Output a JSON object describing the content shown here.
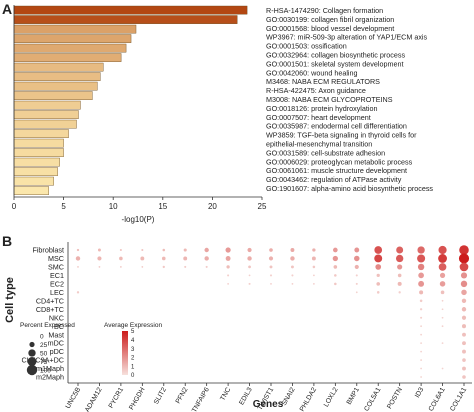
{
  "panel_a": {
    "label": "A",
    "chart_data": {
      "type": "bar",
      "orientation": "horizontal",
      "xlabel": "-log10(P)",
      "xlim": [
        0,
        25
      ],
      "xticks": [
        "0",
        "5",
        "10",
        "15",
        "20",
        "25"
      ],
      "categories": [
        "R-HSA-1474290: Collagen formation",
        "GO:0030199: collagen fibril organization",
        "GO:0001568: blood vessel development",
        "WP3967: miR-509-3p alteration of YAP1/ECM axis",
        "GO:0001503: ossification",
        "GO:0032964: collagen biosynthetic process",
        "GO:0001501: skeletal system development",
        "GO:0042060: wound healing",
        "M3468: NABA ECM REGULATORS",
        "R-HSA-422475: Axon guidance",
        "M3008: NABA ECM GLYCOPROTEINS",
        "GO:0018126: protein hydroxylation",
        "GO:0007507: heart development",
        "GO:0035987: endodermal cell differentiation",
        "WP3859: TGF-beta signaling in thyroid cells for epithelial-mesenchymal transition",
        "GO:0031589: cell-substrate adhesion",
        "GO:0006029: proteoglycan metabolic process",
        "GO:0061061: muscle structure development",
        "GO:0043462: regulation of ATPase activity",
        "GO:1901607: alpha-amino acid biosynthetic process"
      ],
      "label_lines": [
        [
          "R-HSA-1474290: Collagen formation"
        ],
        [
          "GO:0030199: collagen fibril organization"
        ],
        [
          "GO:0001568: blood vessel development"
        ],
        [
          "WP3967: miR-509-3p alteration of YAP1/ECM axis"
        ],
        [
          "GO:0001503: ossification"
        ],
        [
          "GO:0032964: collagen biosynthetic process"
        ],
        [
          "GO:0001501: skeletal system development"
        ],
        [
          "GO:0042060: wound healing"
        ],
        [
          "M3468: NABA ECM REGULATORS"
        ],
        [
          "R-HSA-422475: Axon guidance"
        ],
        [
          "M3008: NABA ECM GLYCOPROTEINS"
        ],
        [
          "GO:0018126: protein hydroxylation"
        ],
        [
          "GO:0007507: heart development"
        ],
        [
          "GO:0035987: endodermal cell differentiation"
        ],
        [
          "WP3859: TGF-beta signaling in thyroid cells for",
          "epithelial-mesenchymal transition"
        ],
        [
          "GO:0031589: cell-substrate adhesion"
        ],
        [
          "GO:0006029: proteoglycan metabolic process"
        ],
        [
          "GO:0061061: muscle structure development"
        ],
        [
          "GO:0043462: regulation of ATPase activity"
        ],
        [
          "GO:1901607: alpha-amino acid biosynthetic process"
        ]
      ],
      "values": [
        23.5,
        22.5,
        12.3,
        11.8,
        11.3,
        10.8,
        9.0,
        8.7,
        8.4,
        7.9,
        6.7,
        6.5,
        6.3,
        5.5,
        5.0,
        5.0,
        4.6,
        4.4,
        4.0,
        3.5
      ],
      "color_high": "#b34712",
      "color_low": "#fbe7ac"
    }
  },
  "panel_b": {
    "label": "B",
    "chart_data": {
      "type": "dotplot",
      "xlabel": "Genes",
      "ylabel": "Cell type",
      "genes": [
        "UNC5B",
        "ADAM12",
        "PYCR1",
        "PHGDH",
        "SLIT2",
        "PFN2",
        "TNFAIP6",
        "TNC",
        "EDIL3",
        "TWIST1",
        "SNAI2",
        "PHLDA2",
        "LOXL2",
        "BMP1",
        "COL5A1",
        "POSTN",
        "ID3",
        "COL6A1",
        "COL1A1"
      ],
      "cell_types": [
        "Fibroblast",
        "MSC",
        "SMC",
        "EC1",
        "EC2",
        "LEC",
        "CD4+TC",
        "CD8+TC",
        "NKC",
        "BC",
        "Mast",
        "mDC",
        "pDC",
        "CLEC9A+DC",
        "m1Maph",
        "m2Maph"
      ],
      "size_legend": {
        "title": "Percent Expressed",
        "levels": [
          0,
          25,
          50,
          75,
          100
        ],
        "labels": [
          "0",
          "25",
          "50",
          "75",
          "100"
        ]
      },
      "color_legend": {
        "title": "Average Expression",
        "ticks": [
          "5",
          "4",
          "3",
          "2",
          "1",
          "0"
        ],
        "min": 0,
        "max": 5,
        "color_low": "#f6e0dc",
        "color_high": "#cc1b1b"
      },
      "pct_expressed": [
        [
          5,
          8,
          4,
          4,
          6,
          9,
          18,
          25,
          16,
          12,
          14,
          10,
          20,
          22,
          55,
          45,
          50,
          62,
          85
        ],
        [
          18,
          16,
          12,
          14,
          12,
          14,
          18,
          22,
          18,
          16,
          18,
          14,
          26,
          28,
          58,
          50,
          60,
          72,
          95
        ],
        [
          3,
          3,
          3,
          3,
          5,
          4,
          4,
          10,
          7,
          8,
          8,
          6,
          12,
          16,
          30,
          25,
          38,
          55,
          70
        ],
        [
          0,
          0,
          0,
          0,
          0,
          0,
          0,
          4,
          3,
          4,
          4,
          3,
          6,
          4,
          10,
          12,
          30,
          25,
          35
        ],
        [
          0,
          0,
          0,
          0,
          0,
          0,
          0,
          3,
          4,
          3,
          3,
          3,
          6,
          4,
          12,
          15,
          32,
          28,
          38
        ],
        [
          5,
          0,
          0,
          0,
          0,
          0,
          0,
          0,
          0,
          0,
          0,
          0,
          0,
          3,
          6,
          5,
          15,
          12,
          28
        ],
        [
          0,
          0,
          0,
          0,
          0,
          0,
          0,
          0,
          0,
          0,
          0,
          0,
          0,
          0,
          0,
          0,
          6,
          3,
          18
        ],
        [
          0,
          0,
          0,
          0,
          0,
          0,
          0,
          0,
          0,
          0,
          0,
          0,
          0,
          0,
          0,
          0,
          5,
          3,
          18
        ],
        [
          0,
          0,
          0,
          0,
          0,
          0,
          0,
          0,
          0,
          0,
          0,
          0,
          0,
          0,
          0,
          0,
          4,
          3,
          16
        ],
        [
          0,
          0,
          0,
          0,
          0,
          0,
          0,
          0,
          0,
          0,
          0,
          0,
          0,
          0,
          0,
          0,
          3,
          3,
          15
        ],
        [
          0,
          0,
          0,
          0,
          0,
          0,
          0,
          0,
          0,
          0,
          0,
          0,
          0,
          0,
          0,
          0,
          3,
          0,
          14
        ],
        [
          0,
          0,
          0,
          0,
          0,
          0,
          0,
          0,
          0,
          0,
          0,
          0,
          0,
          0,
          0,
          0,
          3,
          3,
          14
        ],
        [
          0,
          0,
          0,
          0,
          0,
          0,
          0,
          0,
          0,
          0,
          0,
          0,
          0,
          0,
          0,
          0,
          3,
          0,
          14
        ],
        [
          0,
          0,
          0,
          0,
          0,
          0,
          0,
          0,
          0,
          0,
          0,
          0,
          0,
          0,
          0,
          0,
          3,
          0,
          12
        ],
        [
          0,
          0,
          0,
          0,
          0,
          0,
          0,
          0,
          0,
          0,
          0,
          0,
          0,
          0,
          0,
          0,
          3,
          3,
          14
        ],
        [
          0,
          0,
          0,
          0,
          0,
          0,
          0,
          0,
          0,
          0,
          0,
          0,
          0,
          0,
          0,
          0,
          3,
          0,
          12
        ]
      ],
      "avg_expression": [
        [
          0.8,
          1.0,
          0.7,
          0.7,
          0.9,
          1.0,
          1.5,
          1.8,
          1.4,
          1.3,
          1.4,
          1.2,
          1.8,
          1.9,
          3.6,
          3.2,
          3.0,
          3.6,
          4.4
        ],
        [
          1.2,
          1.1,
          1.0,
          1.0,
          1.0,
          1.1,
          1.3,
          1.5,
          1.3,
          1.2,
          1.3,
          1.1,
          1.9,
          2.0,
          3.9,
          3.4,
          3.5,
          4.2,
          5.0
        ],
        [
          0.5,
          0.5,
          0.5,
          0.5,
          0.6,
          0.5,
          0.5,
          0.9,
          0.7,
          0.7,
          0.7,
          0.6,
          1.0,
          1.2,
          2.2,
          1.9,
          2.4,
          3.3,
          3.8
        ],
        [
          0,
          0,
          0,
          0,
          0,
          0,
          0,
          0.4,
          0.4,
          0.4,
          0.4,
          0.4,
          0.6,
          0.4,
          0.8,
          0.9,
          1.8,
          1.6,
          2.0
        ],
        [
          0,
          0,
          0,
          0,
          0,
          0,
          0,
          0.4,
          0.4,
          0.4,
          0.4,
          0.4,
          0.6,
          0.4,
          0.9,
          1.0,
          1.9,
          1.7,
          2.1
        ],
        [
          0.5,
          0,
          0,
          0,
          0,
          0,
          0,
          0,
          0,
          0,
          0,
          0,
          0,
          0.3,
          0.5,
          0.4,
          1.0,
          0.8,
          1.5
        ],
        [
          0,
          0,
          0,
          0,
          0,
          0,
          0,
          0,
          0,
          0,
          0,
          0,
          0,
          0,
          0,
          0,
          0.5,
          0.3,
          1.0
        ],
        [
          0,
          0,
          0,
          0,
          0,
          0,
          0,
          0,
          0,
          0,
          0,
          0,
          0,
          0,
          0,
          0,
          0.4,
          0.3,
          1.0
        ],
        [
          0,
          0,
          0,
          0,
          0,
          0,
          0,
          0,
          0,
          0,
          0,
          0,
          0,
          0,
          0,
          0,
          0.4,
          0.3,
          0.9
        ],
        [
          0,
          0,
          0,
          0,
          0,
          0,
          0,
          0,
          0,
          0,
          0,
          0,
          0,
          0,
          0,
          0,
          0.3,
          0.3,
          0.9
        ],
        [
          0,
          0,
          0,
          0,
          0,
          0,
          0,
          0,
          0,
          0,
          0,
          0,
          0,
          0,
          0,
          0,
          0.3,
          0,
          0.8
        ],
        [
          0,
          0,
          0,
          0,
          0,
          0,
          0,
          0,
          0,
          0,
          0,
          0,
          0,
          0,
          0,
          0,
          0.3,
          0.3,
          0.8
        ],
        [
          0,
          0,
          0,
          0,
          0,
          0,
          0,
          0,
          0,
          0,
          0,
          0,
          0,
          0,
          0,
          0,
          0.3,
          0,
          0.8
        ],
        [
          0,
          0,
          0,
          0,
          0,
          0,
          0,
          0,
          0,
          0,
          0,
          0,
          0,
          0,
          0,
          0,
          0.3,
          0,
          0.7
        ],
        [
          0,
          0,
          0,
          0,
          0,
          0,
          0,
          0,
          0,
          0,
          0,
          0,
          0,
          0,
          0,
          0,
          0.3,
          0.3,
          0.8
        ],
        [
          0,
          0,
          0,
          0,
          0,
          0,
          0,
          0,
          0,
          0,
          0,
          0,
          0,
          0,
          0,
          0,
          0.3,
          0,
          0.7
        ]
      ]
    }
  }
}
